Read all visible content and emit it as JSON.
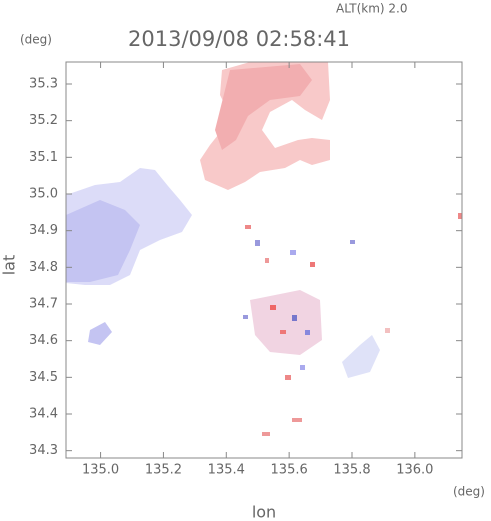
{
  "chart_data": {
    "type": "map",
    "altitude_label": "ALT(km) 2.0",
    "title": "2013/09/08 02:58:41",
    "y_unit": "(deg)",
    "x_unit": "(deg)",
    "ylabel": "lat",
    "xlabel": "lon",
    "xlim": [
      134.89,
      136.15
    ],
    "ylim": [
      34.28,
      35.36
    ],
    "xticks": [
      {
        "value": 135.0,
        "label": "135.0"
      },
      135.2,
      135.4,
      135.6,
      135.8,
      {
        "value": 136.0,
        "label": "136.0"
      }
    ],
    "yticks": [
      34.3,
      34.4,
      34.5,
      34.6,
      34.7,
      34.8,
      34.9,
      {
        "value": 35.0,
        "label": "35.0"
      },
      35.1,
      35.2,
      35.3
    ]
  }
}
